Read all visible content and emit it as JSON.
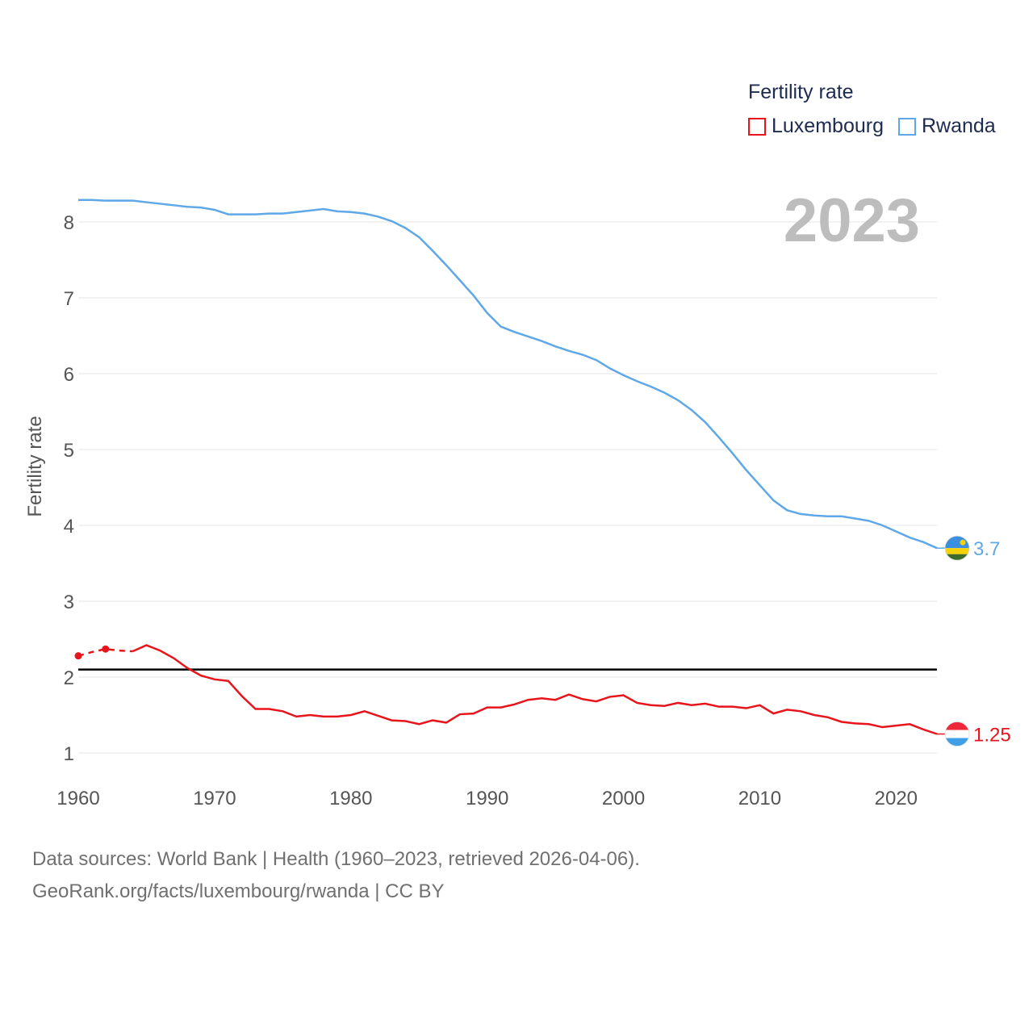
{
  "legend": {
    "title": "Fertility rate",
    "items": [
      {
        "label": "Luxembourg",
        "color": "#e8141b"
      },
      {
        "label": "Rwanda",
        "color": "#5ea8e8"
      }
    ]
  },
  "footer": {
    "line1": "Data sources: World Bank | Health (1960–2023, retrieved 2026-04-06).",
    "line2": "GeoRank.org/facts/luxembourg/rwanda | CC BY"
  },
  "chart_data": {
    "type": "line",
    "year_label": "2023",
    "ylabel": "Fertility rate",
    "xlim": [
      1960,
      2023
    ],
    "ylim": [
      0.8,
      8.5
    ],
    "x_ticks": [
      1960,
      1970,
      1980,
      1990,
      2000,
      2010,
      2020
    ],
    "y_ticks": [
      1,
      2,
      3,
      4,
      5,
      6,
      7,
      8
    ],
    "reference_line": {
      "y": 2.1,
      "color": "#000000"
    },
    "x": [
      1960,
      1961,
      1962,
      1963,
      1964,
      1965,
      1966,
      1967,
      1968,
      1969,
      1970,
      1971,
      1972,
      1973,
      1974,
      1975,
      1976,
      1977,
      1978,
      1979,
      1980,
      1981,
      1982,
      1983,
      1984,
      1985,
      1986,
      1987,
      1988,
      1989,
      1990,
      1991,
      1992,
      1993,
      1994,
      1995,
      1996,
      1997,
      1998,
      1999,
      2000,
      2001,
      2002,
      2003,
      2004,
      2005,
      2006,
      2007,
      2008,
      2009,
      2010,
      2011,
      2012,
      2013,
      2014,
      2015,
      2016,
      2017,
      2018,
      2019,
      2020,
      2021,
      2022,
      2023
    ],
    "series": [
      {
        "name": "Luxembourg",
        "color": "#e8141b",
        "end_label": "1.25",
        "dashed_until": 1964,
        "markers": [
          1960,
          1962
        ],
        "values": [
          2.28,
          2.33,
          2.37,
          2.35,
          2.34,
          2.42,
          2.35,
          2.25,
          2.12,
          2.02,
          1.97,
          1.95,
          1.75,
          1.58,
          1.58,
          1.55,
          1.48,
          1.5,
          1.48,
          1.48,
          1.5,
          1.55,
          1.49,
          1.43,
          1.42,
          1.38,
          1.43,
          1.4,
          1.51,
          1.52,
          1.6,
          1.6,
          1.64,
          1.7,
          1.72,
          1.7,
          1.77,
          1.71,
          1.68,
          1.74,
          1.76,
          1.66,
          1.63,
          1.62,
          1.66,
          1.63,
          1.65,
          1.61,
          1.61,
          1.59,
          1.63,
          1.52,
          1.57,
          1.55,
          1.5,
          1.47,
          1.41,
          1.39,
          1.38,
          1.34,
          1.36,
          1.38,
          1.31,
          1.25
        ]
      },
      {
        "name": "Rwanda",
        "color": "#5ea8e8",
        "end_label": "3.7",
        "values": [
          8.29,
          8.29,
          8.28,
          8.28,
          8.28,
          8.26,
          8.24,
          8.22,
          8.2,
          8.19,
          8.16,
          8.1,
          8.1,
          8.1,
          8.11,
          8.11,
          8.13,
          8.15,
          8.17,
          8.14,
          8.13,
          8.11,
          8.07,
          8.01,
          7.92,
          7.8,
          7.62,
          7.43,
          7.23,
          7.03,
          6.8,
          6.62,
          6.55,
          6.49,
          6.43,
          6.36,
          6.3,
          6.25,
          6.18,
          6.07,
          5.98,
          5.9,
          5.83,
          5.75,
          5.65,
          5.52,
          5.36,
          5.16,
          4.95,
          4.73,
          4.53,
          4.33,
          4.2,
          4.15,
          4.13,
          4.12,
          4.12,
          4.09,
          4.06,
          4.0,
          3.92,
          3.84,
          3.78,
          3.7
        ]
      }
    ]
  }
}
